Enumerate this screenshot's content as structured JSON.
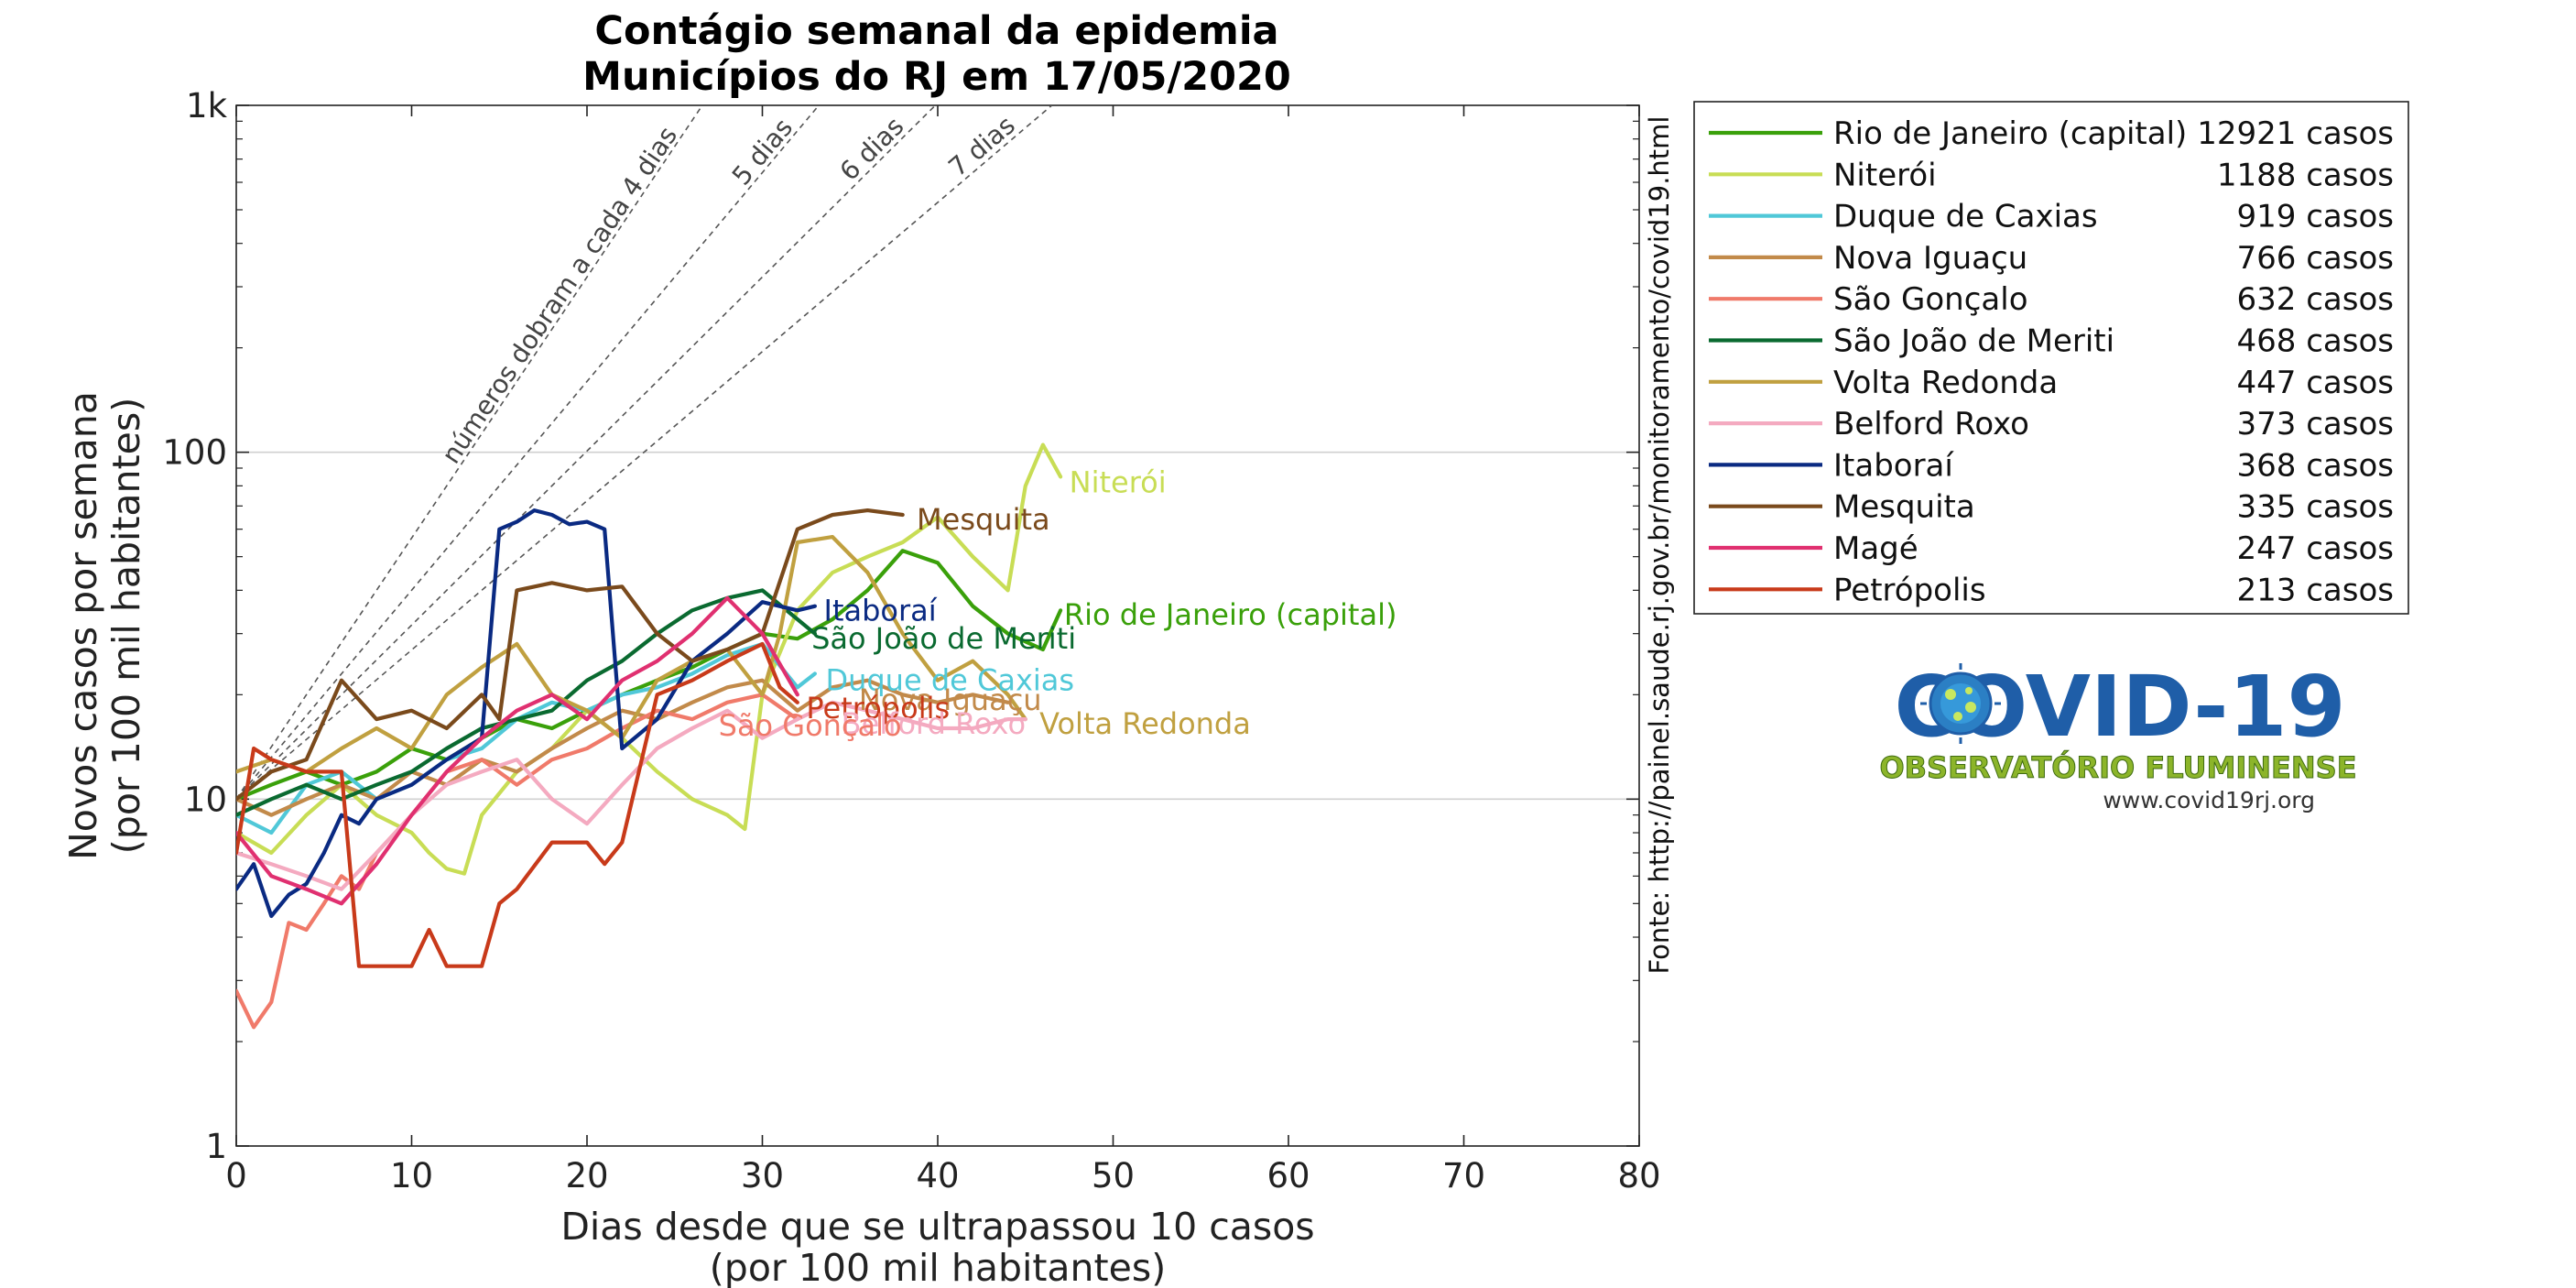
{
  "chart_data": {
    "type": "line",
    "title": "Contágio semanal da epidemia",
    "subtitle": "Municípios do RJ em 17/05/2020",
    "xlabel": "Dias desde que se ultrapassou 10 casos",
    "xlabel2": "(por 100 mil habitantes)",
    "ylabel": "Novos casos por semana",
    "ylabel2": "(por 100 mil habitantes)",
    "y_scale": "log",
    "xlim": [
      0,
      80
    ],
    "ylim": [
      1,
      1000
    ],
    "x_ticks": [
      0,
      10,
      20,
      30,
      40,
      50,
      60,
      70,
      80
    ],
    "y_ticks": [
      {
        "value": 1,
        "label": "1"
      },
      {
        "value": 10,
        "label": "10"
      },
      {
        "value": 100,
        "label": "100"
      },
      {
        "value": 1000,
        "label": "1k"
      }
    ],
    "grid": "horizontal at 10 and 100",
    "legend_position": "outside right",
    "source": "Fonte: http://painel.saude.rj.gov.br/monitoramento/covid19.html",
    "reference_lines": [
      {
        "label": "números dobram a cada 4 dias",
        "doubling_days": 4
      },
      {
        "label": "5 dias",
        "doubling_days": 5
      },
      {
        "label": "6 dias",
        "doubling_days": 6
      },
      {
        "label": "7 dias",
        "doubling_days": 7
      }
    ],
    "series": [
      {
        "name": "Rio de Janeiro (capital)",
        "cases": "12921 casos",
        "color": "#3aa00a",
        "x": [
          0,
          2,
          4,
          6,
          8,
          10,
          12,
          14,
          16,
          18,
          20,
          22,
          24,
          26,
          28,
          30,
          32,
          34,
          36,
          38,
          40,
          42,
          44,
          46,
          47
        ],
        "y": [
          10,
          11,
          12,
          11,
          12,
          14,
          13,
          15,
          17,
          16,
          18,
          20,
          22,
          24,
          27,
          30,
          29,
          33,
          40,
          52,
          48,
          36,
          30,
          27,
          35
        ]
      },
      {
        "name": "Niterói",
        "cases": "1188 casos",
        "color": "#c8dd55",
        "x": [
          0,
          2,
          4,
          6,
          8,
          10,
          11,
          12,
          13,
          14,
          16,
          18,
          20,
          22,
          24,
          26,
          28,
          29,
          30,
          32,
          34,
          36,
          38,
          40,
          42,
          44,
          45,
          46,
          47
        ],
        "y": [
          8,
          7,
          9,
          11,
          9,
          8,
          7,
          6.3,
          6.1,
          9,
          12,
          14,
          18,
          15,
          12,
          10,
          9,
          8.2,
          20,
          35,
          45,
          50,
          55,
          65,
          50,
          40,
          80,
          105,
          85
        ]
      },
      {
        "name": "Duque de Caxias",
        "cases": "919 casos",
        "color": "#50c8d8",
        "x": [
          0,
          2,
          4,
          6,
          8,
          10,
          12,
          14,
          16,
          18,
          20,
          22,
          24,
          26,
          28,
          30,
          32,
          33
        ],
        "y": [
          9,
          8,
          11,
          12,
          10,
          11,
          13,
          14,
          17,
          19,
          18,
          20,
          21,
          23,
          26,
          28,
          21,
          23
        ]
      },
      {
        "name": "Nova Iguaçu",
        "cases": "766 casos",
        "color": "#c28a4a",
        "x": [
          0,
          2,
          4,
          6,
          8,
          10,
          12,
          14,
          16,
          18,
          20,
          22,
          24,
          26,
          28,
          30,
          32,
          34,
          36,
          38,
          40,
          42,
          44
        ],
        "y": [
          10,
          9,
          10,
          11,
          10,
          12,
          11,
          13,
          12,
          14,
          16,
          18,
          17,
          19,
          21,
          22,
          18,
          21,
          22,
          20,
          19,
          20,
          19
        ]
      },
      {
        "name": "São Gonçalo",
        "cases": "632 casos",
        "color": "#f07a6a",
        "x": [
          0,
          1,
          2,
          3,
          4,
          5,
          6,
          7,
          8,
          10,
          12,
          14,
          16,
          18,
          20,
          22,
          24,
          26,
          28,
          30,
          32
        ],
        "y": [
          2.8,
          2.2,
          2.6,
          4.4,
          4.2,
          5,
          6,
          5.5,
          7,
          9,
          12,
          13,
          11,
          13,
          14,
          16,
          18,
          17,
          19,
          20,
          17
        ]
      },
      {
        "name": "São João de Meriti",
        "cases": "468 casos",
        "color": "#0a6a30",
        "x": [
          0,
          2,
          4,
          6,
          8,
          10,
          12,
          14,
          16,
          18,
          20,
          22,
          24,
          26,
          28,
          30,
          32,
          33
        ],
        "y": [
          9,
          10,
          11,
          10,
          11,
          12,
          14,
          16,
          17,
          18,
          22,
          25,
          30,
          35,
          38,
          40,
          33,
          30
        ]
      },
      {
        "name": "Volta Redonda",
        "cases": "447 casos",
        "color": "#c0a040",
        "x": [
          0,
          2,
          4,
          6,
          8,
          10,
          12,
          14,
          16,
          18,
          20,
          22,
          24,
          26,
          28,
          30,
          31,
          32,
          34,
          36,
          38,
          40,
          42,
          44,
          45
        ],
        "y": [
          12,
          13,
          12,
          14,
          16,
          14,
          20,
          24,
          28,
          20,
          18,
          15,
          22,
          25,
          27,
          20,
          30,
          55,
          57,
          45,
          30,
          22,
          25,
          20,
          17
        ]
      },
      {
        "name": "Belford Roxo",
        "cases": "373 casos",
        "color": "#f4aac0",
        "x": [
          0,
          2,
          4,
          6,
          8,
          10,
          12,
          14,
          16,
          18,
          20,
          22,
          24,
          26,
          28,
          30,
          32,
          34,
          36,
          38,
          40,
          42,
          44,
          45
        ],
        "y": [
          7,
          6.5,
          6,
          5.5,
          7,
          9,
          11,
          12,
          13,
          10,
          8.5,
          11,
          14,
          16,
          18,
          15,
          17,
          19,
          18,
          17,
          16,
          16,
          17,
          17
        ]
      },
      {
        "name": "Itaboraí",
        "cases": "368 casos",
        "color": "#0a2a82",
        "x": [
          0,
          1,
          2,
          3,
          4,
          5,
          6,
          7,
          8,
          10,
          12,
          14,
          15,
          16,
          17,
          18,
          19,
          20,
          21,
          22,
          24,
          26,
          28,
          30,
          32,
          33
        ],
        "y": [
          5.5,
          6.5,
          4.6,
          5.3,
          5.7,
          7,
          9,
          8.5,
          10,
          11,
          13,
          15,
          60,
          63,
          68,
          66,
          62,
          63,
          60,
          14,
          17,
          25,
          30,
          37,
          35,
          36
        ]
      },
      {
        "name": "Mesquita",
        "cases": "335 casos",
        "color": "#7a4a1c",
        "x": [
          0,
          2,
          4,
          6,
          8,
          10,
          12,
          14,
          15,
          16,
          18,
          20,
          22,
          24,
          26,
          28,
          30,
          32,
          34,
          36,
          38
        ],
        "y": [
          10,
          12,
          13,
          22,
          17,
          18,
          16,
          20,
          17,
          40,
          42,
          40,
          41,
          30,
          25,
          27,
          30,
          60,
          66,
          68,
          66
        ]
      },
      {
        "name": "Magé",
        "cases": "247 casos",
        "color": "#e03070",
        "x": [
          0,
          2,
          4,
          6,
          8,
          10,
          12,
          14,
          16,
          18,
          20,
          22,
          24,
          26,
          28,
          30,
          32
        ],
        "y": [
          8,
          6,
          5.5,
          5,
          6.5,
          9,
          12,
          15,
          18,
          20,
          17,
          22,
          25,
          30,
          38,
          30,
          20
        ]
      },
      {
        "name": "Petrópolis",
        "cases": "213 casos",
        "color": "#c83a1a",
        "x": [
          0,
          1,
          2,
          4,
          6,
          7,
          8,
          10,
          11,
          12,
          14,
          15,
          16,
          18,
          20,
          21,
          22,
          24,
          26,
          28,
          30,
          31,
          32
        ],
        "y": [
          7,
          14,
          13,
          12,
          12,
          3.3,
          3.3,
          3.3,
          4.2,
          3.3,
          3.3,
          5,
          5.5,
          7.5,
          7.5,
          6.5,
          7.5,
          20,
          22,
          25,
          28,
          21,
          19
        ]
      }
    ],
    "end_labels": [
      {
        "text": "Niterói",
        "series": "Niterói",
        "x": 47.5,
        "y": 82,
        "color": "#c8dd55"
      },
      {
        "text": "Mesquita",
        "series": "Mesquita",
        "x": 38.8,
        "y": 64,
        "color": "#7a4a1c"
      },
      {
        "text": "Rio de Janeiro (capital)",
        "series": "Rio de Janeiro (capital)",
        "x": 47.2,
        "y": 34,
        "color": "#3aa00a"
      },
      {
        "text": "Itaboraí",
        "series": "Itaboraí",
        "x": 33.5,
        "y": 35,
        "color": "#0a2a82"
      },
      {
        "text": "São João de Meriti",
        "series": "São João de Meriti",
        "x": 32.8,
        "y": 29,
        "color": "#0a6a30"
      },
      {
        "text": "Duque de Caxias",
        "series": "Duque de Caxias",
        "x": 33.6,
        "y": 22,
        "color": "#50c8d8"
      },
      {
        "text": "Nova Iguaçu",
        "series": "Nova Iguaçu",
        "x": 35.5,
        "y": 19.3,
        "color": "#c28a4a"
      },
      {
        "text": "Petrópolis",
        "series": "Petrópolis",
        "x": 32.5,
        "y": 18.3,
        "color": "#c83a1a"
      },
      {
        "text": "Belford Roxo",
        "series": "Belford Roxo",
        "x": 34.5,
        "y": 16.5,
        "color": "#f4aac0"
      },
      {
        "text": "São Gonçalo",
        "series": "São Gonçalo",
        "x": 27.5,
        "y": 16.3,
        "color": "#f07a6a"
      },
      {
        "text": "Volta Redonda",
        "series": "Volta Redonda",
        "x": 45.8,
        "y": 16.5,
        "color": "#c0a040"
      }
    ]
  },
  "logo": {
    "title": "COVID-19",
    "subtitle": "OBSERVATÓRIO FLUMINENSE",
    "url": "www.covid19rj.org"
  }
}
